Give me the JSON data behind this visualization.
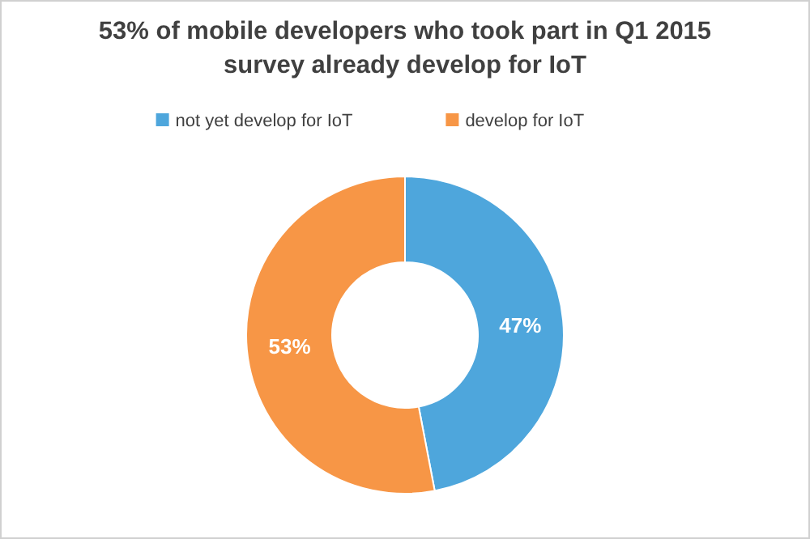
{
  "chart_data": {
    "type": "donut",
    "title": "53% of mobile developers who took part in Q1 2015 survey already develop for IoT",
    "categories": [
      "not yet develop for IoT",
      "develop for IoT"
    ],
    "values": [
      47,
      53
    ],
    "value_labels": [
      "47%",
      "53%"
    ],
    "colors": [
      "#4ea6dc",
      "#f79646"
    ],
    "legend": "top"
  }
}
